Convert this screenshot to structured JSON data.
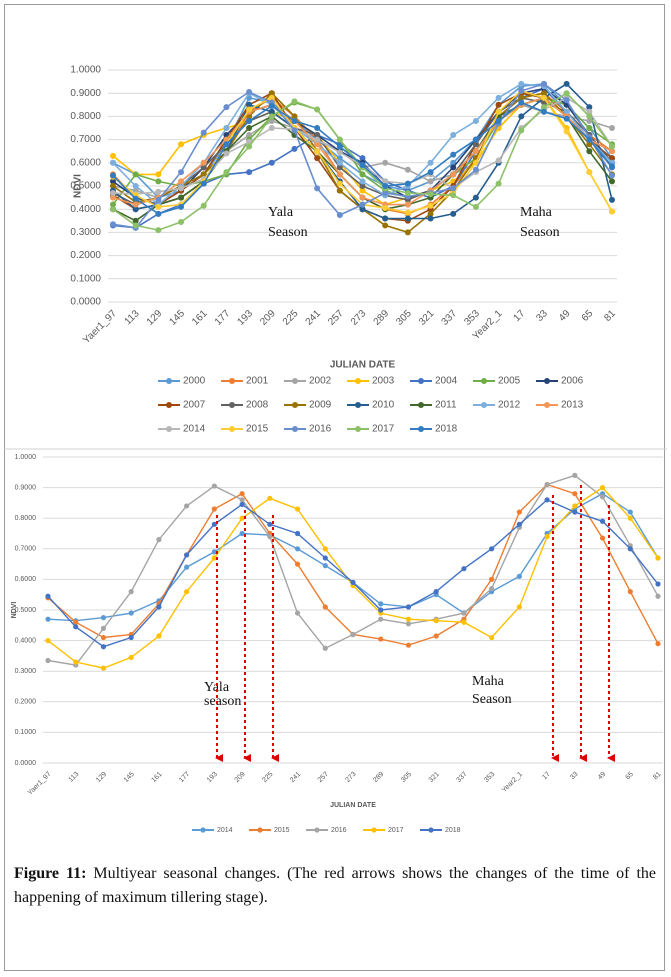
{
  "chart_data": [
    {
      "type": "line",
      "y_label": "NDVI",
      "x_label": "JULIAN DATE",
      "annotations": [
        "Yala",
        "Season",
        "Maha",
        "Season"
      ],
      "categories": [
        "Yaer1_97",
        "113",
        "129",
        "145",
        "161",
        "177",
        "193",
        "209",
        "225",
        "241",
        "257",
        "273",
        "289",
        "305",
        "321",
        "337",
        "353",
        "Year2_1",
        "17",
        "33",
        "49",
        "65",
        "81"
      ],
      "ylim": [
        0,
        1
      ],
      "yticks": [
        {
          "value": 0,
          "label": "0.0000"
        },
        {
          "value": 0.1,
          "label": "0.1000"
        },
        {
          "value": 0.2,
          "label": "0.2000"
        },
        {
          "value": 0.3,
          "label": "0.3000"
        },
        {
          "value": 0.4,
          "label": "0.4000"
        },
        {
          "value": 0.5,
          "label": "0.5000"
        },
        {
          "value": 0.6,
          "label": "0.6000"
        },
        {
          "value": 0.7,
          "label": "0.7000"
        },
        {
          "value": 0.8,
          "label": "0.8000"
        },
        {
          "value": 0.9,
          "label": "0.9000"
        },
        {
          "value": 1,
          "label": "1.0000"
        }
      ],
      "grid": true,
      "series": [
        {
          "name": "2000",
          "color": "#5b9bd5",
          "values": [
            0.6,
            0.55,
            0.45,
            0.48,
            0.55,
            0.68,
            0.88,
            0.86,
            0.78,
            0.7,
            0.62,
            0.55,
            0.5,
            0.48,
            0.52,
            0.6,
            0.7,
            0.85,
            0.93,
            0.94,
            0.85,
            0.75,
            0.62
          ]
        },
        {
          "name": "2001",
          "color": "#ed7d31",
          "values": [
            0.55,
            0.45,
            0.42,
            0.45,
            0.52,
            0.65,
            0.82,
            0.88,
            0.8,
            0.7,
            0.55,
            0.45,
            0.4,
            0.38,
            0.42,
            0.5,
            0.62,
            0.8,
            0.88,
            0.9,
            0.82,
            0.72,
            0.65
          ]
        },
        {
          "name": "2002",
          "color": "#a5a5a5",
          "values": [
            0.5,
            0.48,
            0.45,
            0.5,
            0.55,
            0.65,
            0.72,
            0.78,
            0.75,
            0.7,
            0.65,
            0.58,
            0.6,
            0.57,
            0.52,
            0.55,
            0.6,
            0.75,
            0.85,
            0.82,
            0.8,
            0.78,
            0.75
          ]
        },
        {
          "name": "2003",
          "color": "#ffc000",
          "values": [
            0.63,
            0.55,
            0.55,
            0.68,
            0.72,
            0.75,
            0.78,
            0.82,
            0.78,
            0.72,
            0.6,
            0.48,
            0.42,
            0.45,
            0.48,
            0.52,
            0.6,
            0.75,
            0.85,
            0.88,
            0.75,
            0.56,
            0.39
          ]
        },
        {
          "name": "2004",
          "color": "#4472c4",
          "values": [
            0.33,
            0.32,
            0.38,
            0.42,
            0.51,
            0.55,
            0.56,
            0.6,
            0.66,
            0.72,
            0.68,
            0.62,
            0.52,
            0.48,
            0.45,
            0.5,
            0.65,
            0.8,
            0.88,
            0.92,
            0.82,
            0.7,
            0.58
          ]
        },
        {
          "name": "2005",
          "color": "#70ad47",
          "values": [
            0.42,
            0.55,
            0.52,
            0.5,
            0.52,
            0.55,
            0.7,
            0.8,
            0.86,
            0.83,
            0.7,
            0.55,
            0.48,
            0.45,
            0.48,
            0.55,
            0.62,
            0.78,
            0.85,
            0.88,
            0.85,
            0.75,
            0.68
          ]
        },
        {
          "name": "2006",
          "color": "#264478",
          "values": [
            0.52,
            0.45,
            0.42,
            0.48,
            0.58,
            0.72,
            0.82,
            0.85,
            0.78,
            0.72,
            0.65,
            0.6,
            0.5,
            0.45,
            0.48,
            0.58,
            0.7,
            0.82,
            0.9,
            0.92,
            0.85,
            0.72,
            0.6
          ]
        },
        {
          "name": "2007",
          "color": "#9e480e",
          "values": [
            0.46,
            0.4,
            0.42,
            0.48,
            0.55,
            0.7,
            0.85,
            0.9,
            0.75,
            0.62,
            0.48,
            0.4,
            0.36,
            0.35,
            0.4,
            0.5,
            0.68,
            0.85,
            0.9,
            0.88,
            0.8,
            0.7,
            0.62
          ]
        },
        {
          "name": "2008",
          "color": "#636363",
          "values": [
            0.47,
            0.42,
            0.45,
            0.5,
            0.58,
            0.68,
            0.78,
            0.82,
            0.75,
            0.72,
            0.58,
            0.5,
            0.46,
            0.44,
            0.48,
            0.55,
            0.68,
            0.82,
            0.88,
            0.86,
            0.82,
            0.72,
            0.6
          ]
        },
        {
          "name": "2009",
          "color": "#997300",
          "values": [
            0.5,
            0.43,
            0.45,
            0.5,
            0.55,
            0.65,
            0.8,
            0.9,
            0.8,
            0.65,
            0.48,
            0.4,
            0.33,
            0.3,
            0.38,
            0.48,
            0.62,
            0.8,
            0.88,
            0.9,
            0.8,
            0.68,
            0.55
          ]
        },
        {
          "name": "2010",
          "color": "#255e91",
          "values": [
            0.48,
            0.4,
            0.42,
            0.45,
            0.52,
            0.65,
            0.85,
            0.82,
            0.75,
            0.65,
            0.52,
            0.4,
            0.36,
            0.36,
            0.36,
            0.38,
            0.45,
            0.6,
            0.8,
            0.88,
            0.94,
            0.84,
            0.44
          ]
        },
        {
          "name": "2011",
          "color": "#43682b",
          "values": [
            0.4,
            0.35,
            0.42,
            0.45,
            0.52,
            0.65,
            0.75,
            0.8,
            0.72,
            0.65,
            0.55,
            0.45,
            0.4,
            0.42,
            0.45,
            0.55,
            0.65,
            0.8,
            0.85,
            0.88,
            0.8,
            0.65,
            0.52
          ]
        },
        {
          "name": "2012",
          "color": "#7cafdd",
          "values": [
            0.6,
            0.5,
            0.42,
            0.5,
            0.6,
            0.75,
            0.9,
            0.85,
            0.75,
            0.68,
            0.6,
            0.52,
            0.46,
            0.5,
            0.6,
            0.72,
            0.78,
            0.88,
            0.94,
            0.93,
            0.82,
            0.7,
            0.6
          ]
        },
        {
          "name": "2013",
          "color": "#f1975a",
          "values": [
            0.45,
            0.42,
            0.45,
            0.52,
            0.6,
            0.7,
            0.82,
            0.85,
            0.78,
            0.68,
            0.55,
            0.45,
            0.42,
            0.42,
            0.48,
            0.55,
            0.65,
            0.78,
            0.85,
            0.88,
            0.8,
            0.7,
            0.65
          ]
        },
        {
          "name": "2014",
          "color": "#b7b7b7",
          "values": [
            0.47,
            0.465,
            0.475,
            0.49,
            0.53,
            0.64,
            0.69,
            0.75,
            0.745,
            0.7,
            0.645,
            0.59,
            0.52,
            0.51,
            0.55,
            0.49,
            0.56,
            0.61,
            0.75,
            0.83,
            0.88,
            0.82,
            0.67
          ]
        },
        {
          "name": "2015",
          "color": "#ffcd33",
          "values": [
            0.54,
            0.46,
            0.41,
            0.42,
            0.52,
            0.68,
            0.83,
            0.88,
            0.75,
            0.65,
            0.51,
            0.42,
            0.405,
            0.385,
            0.415,
            0.47,
            0.6,
            0.82,
            0.91,
            0.88,
            0.735,
            0.56,
            0.39
          ]
        },
        {
          "name": "2016",
          "color": "#698ed0",
          "values": [
            0.335,
            0.32,
            0.44,
            0.56,
            0.73,
            0.84,
            0.905,
            0.86,
            0.74,
            0.49,
            0.375,
            0.42,
            0.47,
            0.455,
            0.47,
            0.49,
            0.57,
            0.77,
            0.91,
            0.94,
            0.87,
            0.71,
            0.545
          ]
        },
        {
          "name": "2017",
          "color": "#8cc168",
          "values": [
            0.4,
            0.33,
            0.31,
            0.345,
            0.415,
            0.56,
            0.67,
            0.8,
            0.865,
            0.83,
            0.7,
            0.58,
            0.49,
            0.47,
            0.465,
            0.46,
            0.41,
            0.51,
            0.74,
            0.84,
            0.9,
            0.8,
            0.67
          ]
        },
        {
          "name": "2018",
          "color": "#327dc2",
          "values": [
            0.545,
            0.445,
            0.38,
            0.41,
            0.51,
            0.68,
            0.78,
            0.845,
            0.78,
            0.75,
            0.67,
            0.59,
            0.5,
            0.51,
            0.56,
            0.635,
            0.7,
            0.78,
            0.86,
            0.82,
            0.79,
            0.7,
            0.585
          ]
        }
      ]
    },
    {
      "type": "line",
      "y_label": "NDVI",
      "x_label": "JULIAN DATE",
      "annotations": [
        "Yala",
        "season",
        "Maha",
        "Season"
      ],
      "categories": [
        "Yaer1_97",
        "113",
        "129",
        "145",
        "161",
        "177",
        "193",
        "209",
        "225",
        "241",
        "257",
        "273",
        "289",
        "305",
        "321",
        "337",
        "353",
        "Year2_1",
        "17",
        "33",
        "49",
        "65",
        "81"
      ],
      "ylim": [
        0,
        1
      ],
      "yticks": [
        {
          "value": 0,
          "label": "0.0000"
        },
        {
          "value": 0.1,
          "label": "0.1000"
        },
        {
          "value": 0.2,
          "label": "0.2000"
        },
        {
          "value": 0.3,
          "label": "0.3000"
        },
        {
          "value": 0.4,
          "label": "0.4000"
        },
        {
          "value": 0.5,
          "label": "0.5000"
        },
        {
          "value": 0.6,
          "label": "0.6000"
        },
        {
          "value": 0.7,
          "label": "0.7000"
        },
        {
          "value": 0.8,
          "label": "0.8000"
        },
        {
          "value": 0.9,
          "label": "0.9000"
        },
        {
          "value": 1,
          "label": "1.0000"
        }
      ],
      "grid": true,
      "series": [
        {
          "name": "2014",
          "color": "#5b9bd5",
          "values": [
            0.47,
            0.465,
            0.475,
            0.49,
            0.53,
            0.64,
            0.69,
            0.75,
            0.745,
            0.7,
            0.645,
            0.59,
            0.52,
            0.51,
            0.55,
            0.49,
            0.56,
            0.61,
            0.75,
            0.83,
            0.88,
            0.82,
            0.67
          ]
        },
        {
          "name": "2015",
          "color": "#ed7d31",
          "values": [
            0.54,
            0.46,
            0.41,
            0.42,
            0.52,
            0.68,
            0.83,
            0.88,
            0.75,
            0.65,
            0.51,
            0.42,
            0.405,
            0.385,
            0.415,
            0.47,
            0.6,
            0.82,
            0.91,
            0.88,
            0.735,
            0.56,
            0.39
          ]
        },
        {
          "name": "2016",
          "color": "#a5a5a5",
          "values": [
            0.335,
            0.32,
            0.44,
            0.56,
            0.73,
            0.84,
            0.905,
            0.86,
            0.74,
            0.49,
            0.375,
            0.42,
            0.47,
            0.455,
            0.47,
            0.49,
            0.57,
            0.77,
            0.91,
            0.94,
            0.87,
            0.71,
            0.545
          ]
        },
        {
          "name": "2017",
          "color": "#ffc000",
          "values": [
            0.4,
            0.33,
            0.31,
            0.345,
            0.415,
            0.56,
            0.67,
            0.8,
            0.865,
            0.83,
            0.7,
            0.58,
            0.49,
            0.47,
            0.465,
            0.46,
            0.41,
            0.51,
            0.74,
            0.84,
            0.9,
            0.8,
            0.67
          ]
        },
        {
          "name": "2018",
          "color": "#4472c4",
          "values": [
            0.545,
            0.445,
            0.38,
            0.41,
            0.51,
            0.68,
            0.78,
            0.845,
            0.78,
            0.75,
            0.67,
            0.59,
            0.5,
            0.51,
            0.56,
            0.635,
            0.7,
            0.78,
            0.86,
            0.82,
            0.79,
            0.7,
            0.585
          ]
        }
      ]
    }
  ],
  "caption": {
    "label": "Figure 11:",
    "text": "Multiyear seasonal changes. (The red arrows shows the changes of the time of the happening of maximum tillering stage)."
  }
}
